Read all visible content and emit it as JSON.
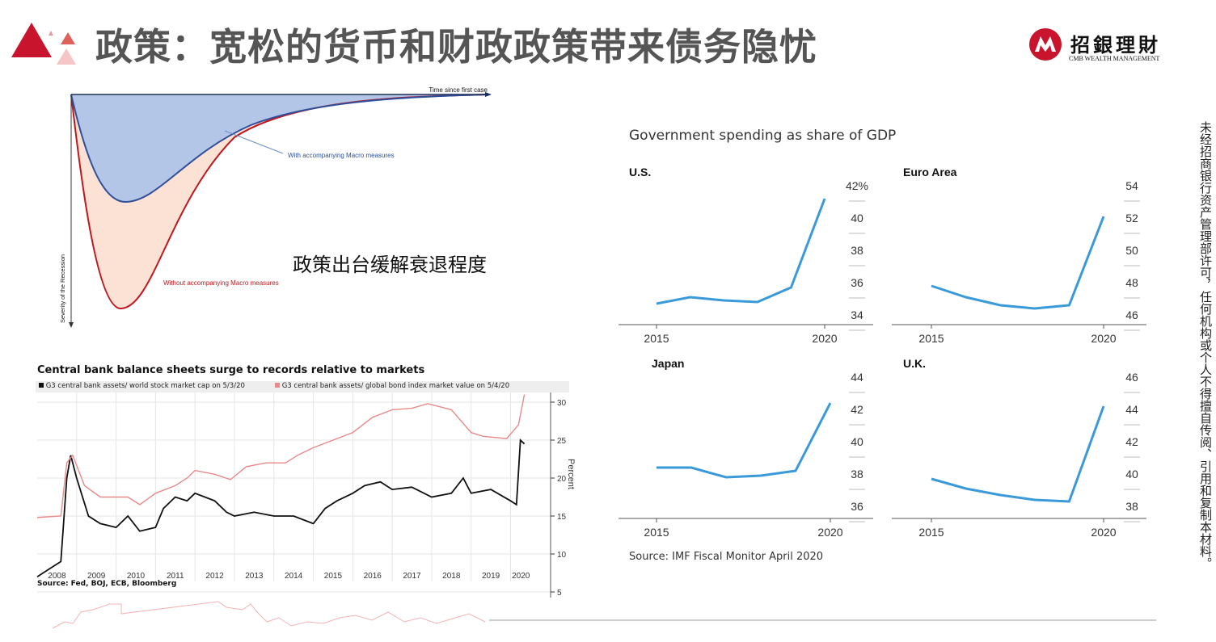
{
  "header": {
    "title": "政策：宽松的货币和财政政策带来债务隐忧",
    "logo_cn": "招銀理財",
    "logo_en": "CMB WEALTH MANAGEMENT"
  },
  "watermark": "未经招商银行资产管理部许可，任何机构或个人不得擅自传阅、引用和复制本材料。",
  "diagram": {
    "x_label": "Time since first case",
    "y_label": "Severity of the Recession",
    "with_label": "With accompanying Macro measures",
    "without_label": "Without accompanying Macro measures",
    "caption": "政策出台缓解衰退程度",
    "colors": {
      "with": "#2f4f9a",
      "with_fill": "#b4c6e7",
      "without": "#c0161c",
      "without_fill": "#fbe2d5"
    }
  },
  "chart_data": [
    {
      "type": "line",
      "title": "Central bank balance sheets surge to records relative to markets",
      "ylabel": "Percent",
      "ylim": [
        4,
        32
      ],
      "yticks": [
        5,
        10,
        15,
        20,
        25,
        30
      ],
      "xlim": [
        2008,
        2020.4
      ],
      "xtick_labels": [
        "2008",
        "2009",
        "2010",
        "2011",
        "2012",
        "2013",
        "2014",
        "2015",
        "2016",
        "2017",
        "2018",
        "2019",
        "2020"
      ],
      "source": "Source: Fed, BOJ, ECB, Bloomberg",
      "series": [
        {
          "name": "G3 central bank assets/ world stock market cap on 5/3/20",
          "color": "#111111",
          "x": [
            2008.0,
            2008.3,
            2008.6,
            2008.75,
            2008.85,
            2009.0,
            2009.3,
            2009.6,
            2010.0,
            2010.3,
            2010.6,
            2011.0,
            2011.2,
            2011.5,
            2011.8,
            2012.0,
            2012.5,
            2012.8,
            2013.0,
            2013.5,
            2014.0,
            2014.5,
            2015.0,
            2015.3,
            2015.6,
            2016.0,
            2016.3,
            2016.7,
            2017.0,
            2017.5,
            2018.0,
            2018.5,
            2018.8,
            2019.0,
            2019.5,
            2020.0,
            2020.15,
            2020.25,
            2020.35
          ],
          "y": [
            7,
            8,
            9,
            20,
            23,
            20,
            15,
            14,
            13.5,
            15,
            13,
            13.5,
            16,
            17.5,
            17,
            18,
            17,
            15.5,
            15,
            15.5,
            15,
            15,
            14,
            16,
            17,
            18,
            19,
            19.5,
            18.5,
            18.8,
            17.5,
            18,
            20,
            18,
            18.5,
            17,
            16.5,
            25,
            24.5
          ]
        },
        {
          "name": "G3 central bank assets/ global bond index market value on 5/4/20",
          "color": "#e88a8a",
          "x": [
            2008.0,
            2008.6,
            2008.75,
            2008.9,
            2009.2,
            2009.6,
            2010.0,
            2010.3,
            2010.6,
            2011.0,
            2011.5,
            2011.8,
            2012.0,
            2012.5,
            2012.9,
            2013.3,
            2013.8,
            2014.3,
            2014.6,
            2015.0,
            2015.5,
            2016.0,
            2016.5,
            2017.0,
            2017.5,
            2017.9,
            2018.5,
            2019.0,
            2019.3,
            2019.9,
            2020.2,
            2020.35
          ],
          "y": [
            14.8,
            15,
            22,
            23,
            19,
            17.5,
            17.5,
            17.5,
            16.5,
            18,
            19,
            20,
            21,
            20.5,
            19.8,
            21.5,
            22,
            22,
            23,
            24,
            25,
            26,
            28,
            29,
            29.2,
            29.8,
            29,
            26,
            25.5,
            25.2,
            27,
            31
          ]
        }
      ]
    },
    {
      "type": "line",
      "title": "Government spending as share of GDP",
      "source": "Source: IMF Fiscal Monitor April 2020",
      "color": "#3a9ad9",
      "x": [
        2015,
        2016,
        2017,
        2018,
        2019,
        2020
      ],
      "xtick_labels": [
        "2015",
        "2020"
      ],
      "panels": [
        {
          "name": "U.S.",
          "yticks": [
            "42%",
            "40",
            "38",
            "36",
            "34"
          ],
          "ytick_values": [
            42,
            40,
            38,
            36,
            34
          ],
          "y": [
            34.7,
            35.1,
            34.9,
            34.8,
            35.7,
            41.2
          ]
        },
        {
          "name": "Euro Area",
          "yticks": [
            "54",
            "52",
            "50",
            "48",
            "46"
          ],
          "ytick_values": [
            54,
            52,
            50,
            48,
            46
          ],
          "y": [
            47.8,
            47.1,
            46.6,
            46.4,
            46.6,
            52.1
          ]
        },
        {
          "name": "Japan",
          "yticks": [
            "44",
            "42",
            "40",
            "38",
            "36"
          ],
          "ytick_values": [
            44,
            42,
            40,
            38,
            36
          ],
          "y": [
            38.4,
            38.4,
            37.8,
            37.9,
            38.2,
            42.4
          ]
        },
        {
          "name": "U.K.",
          "yticks": [
            "46",
            "44",
            "42",
            "40",
            "38"
          ],
          "ytick_values": [
            46,
            44,
            42,
            40,
            38
          ],
          "y": [
            39.7,
            39.1,
            38.7,
            38.4,
            38.3,
            44.2
          ]
        }
      ]
    }
  ]
}
